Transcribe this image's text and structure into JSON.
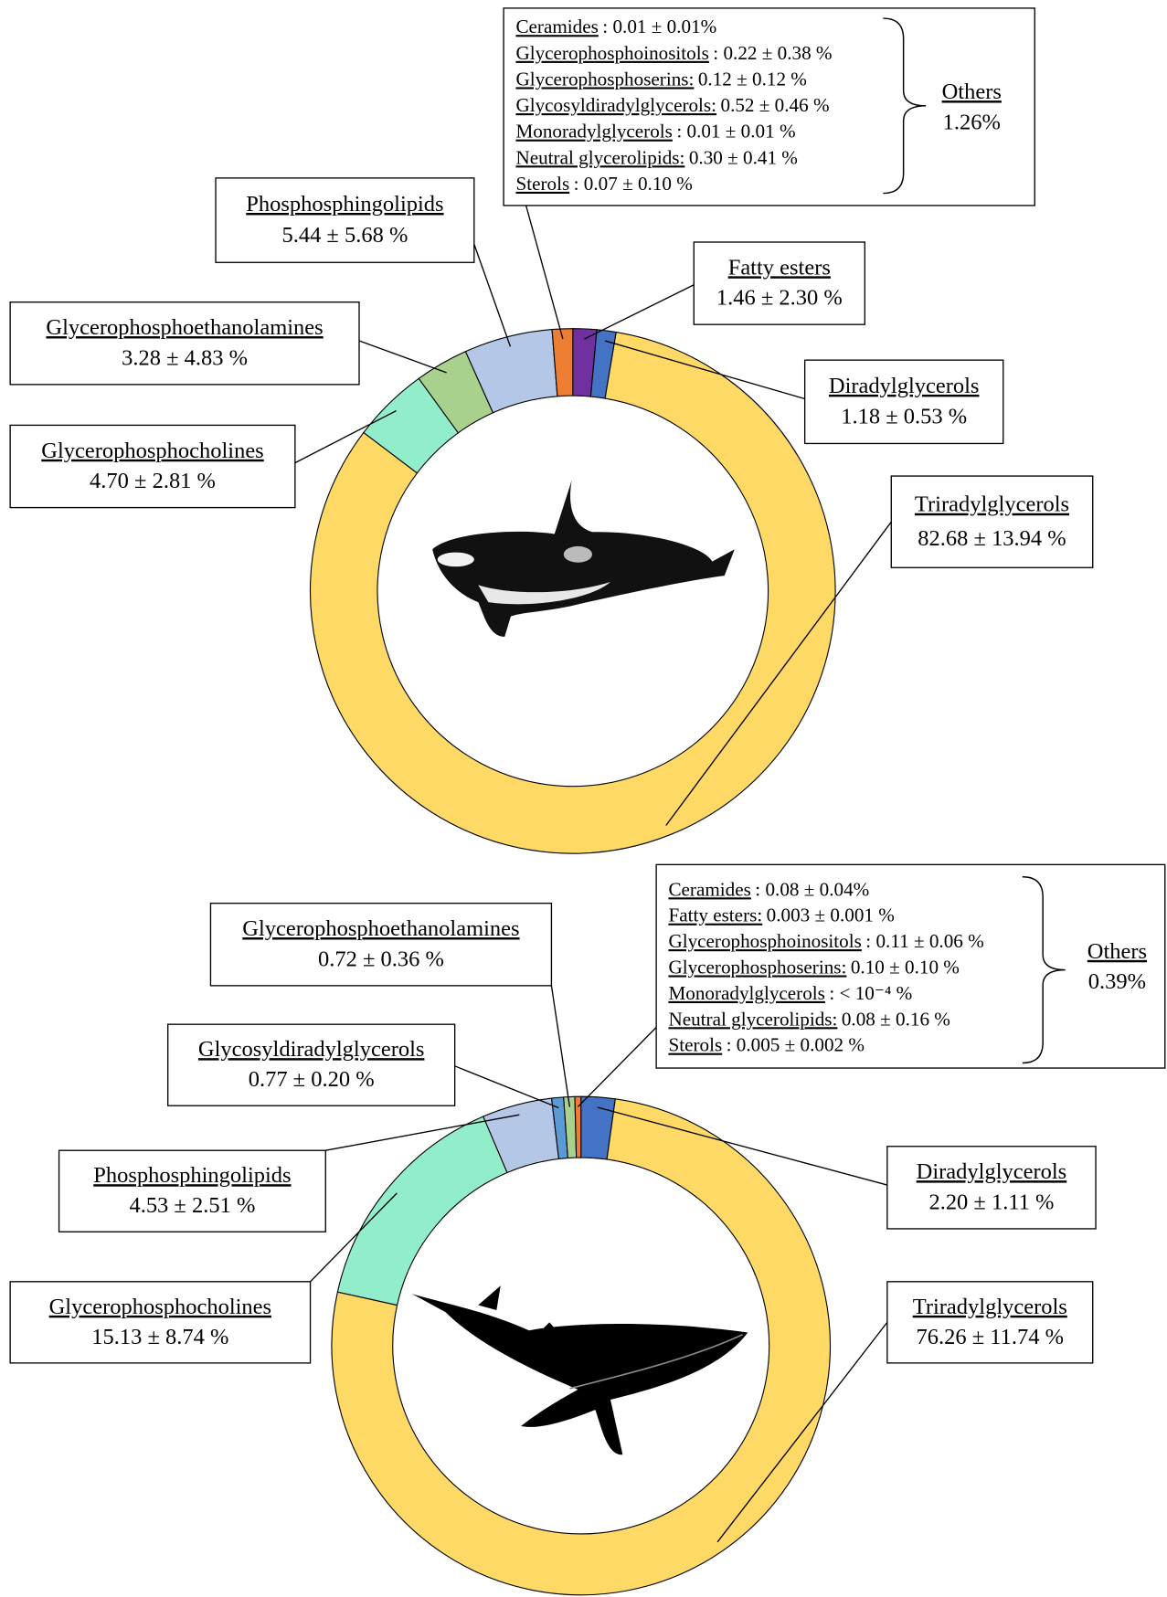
{
  "chart_data": [
    {
      "type": "donut",
      "categories": [
        "Fatty esters",
        "Diradylglycerols",
        "Triradylglycerols",
        "Glycerophosphocholines",
        "Glycerophosphoethanolamines",
        "Phosphosphingolipids",
        "Others"
      ],
      "values": [
        1.46,
        1.18,
        82.68,
        4.7,
        3.28,
        5.44,
        1.26
      ],
      "value_labels": [
        "1.46 ± 2.30 %",
        "1.18 ± 0.53 %",
        "82.68 ± 13.94 %",
        "4.70 ± 2.81 %",
        "3.28 ± 4.83 %",
        "5.44 ± 5.68 %",
        "1.26%"
      ],
      "colors": [
        "#7030a0",
        "#4472c4",
        "#ffd966",
        "#92edca",
        "#a9d18e",
        "#b4c7e7",
        "#ed7d31"
      ],
      "others": [
        {
          "name": "Ceramides",
          "text": ": 0.01  ± 0.01%"
        },
        {
          "name": "Glycerophosphoinositols",
          "text": ": 0.22  ± 0.38 %"
        },
        {
          "name": "Glycerophosphoserins:",
          "text": "0.12  ± 0.12 %"
        },
        {
          "name": "Glycosyldiradylglycerols:",
          "text": "0.52 ± 0.46 %"
        },
        {
          "name": "Monoradylglycerols",
          "text": ": 0.01  ± 0.01 %"
        },
        {
          "name": "Neutral glycerolipids:",
          "text": "0.30  ± 0.41 %"
        },
        {
          "name": "Sterols",
          "text": ": 0.07  ± 0.10 %"
        }
      ]
    },
    {
      "type": "donut",
      "categories": [
        "Diradylglycerols",
        "Triradylglycerols",
        "Glycerophosphocholines",
        "Phosphosphingolipids",
        "Glycosyldiradylglycerols",
        "Glycerophosphoethanolamines",
        "Others"
      ],
      "values": [
        2.2,
        76.26,
        15.13,
        4.53,
        0.77,
        0.72,
        0.39
      ],
      "value_labels": [
        "2.20 ± 1.11 %",
        "76.26 ± 11.74 %",
        "15.13 ± 8.74 %",
        "4.53 ± 2.51 %",
        "0.77 ± 0.20 %",
        "0.72 ± 0.36 %",
        "0.39%"
      ],
      "colors": [
        "#4472c4",
        "#ffd966",
        "#92edca",
        "#b4c7e7",
        "#5b9bd5",
        "#a9d18e",
        "#ed7d31"
      ],
      "others": [
        {
          "name": "Ceramides",
          "text": ": 0.08  ± 0.04%"
        },
        {
          "name": "Fatty esters:",
          "text": "0.003 ± 0.001 %"
        },
        {
          "name": "Glycerophosphoinositols",
          "text": ": 0.11  ± 0.06 %"
        },
        {
          "name": "Glycerophosphoserins:",
          "text": "0.10  ± 0.10 %"
        },
        {
          "name": "Monoradylglycerols",
          "text": ": < 10⁻⁴ %"
        },
        {
          "name": "Neutral glycerolipids:",
          "text": "0.08  ± 0.16 %"
        },
        {
          "name": "Sterols",
          "text": ": 0.005  ± 0.002 %"
        }
      ]
    }
  ]
}
